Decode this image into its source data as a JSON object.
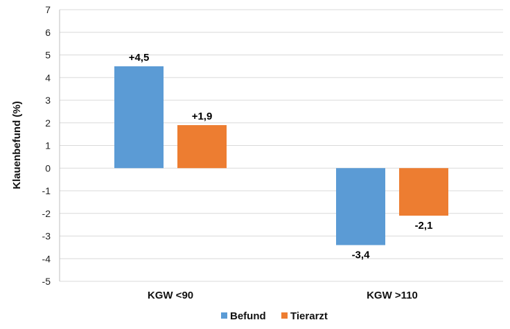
{
  "chart_data": {
    "type": "bar",
    "categories": [
      "KGW <90",
      "KGW >110"
    ],
    "series": [
      {
        "name": "Befund",
        "values": [
          4.5,
          -3.4
        ],
        "labels": [
          "+4,5",
          "-3,4"
        ],
        "color": "#5b9bd5"
      },
      {
        "name": "Tierarzt",
        "values": [
          1.9,
          -2.1
        ],
        "labels": [
          "+1,9",
          "-2,1"
        ],
        "color": "#ed7d31"
      }
    ],
    "ylabel": "Klauenbefund (%)",
    "ylim": [
      -5,
      7
    ],
    "yticks": [
      7,
      6,
      5,
      4,
      3,
      2,
      1,
      0,
      -1,
      -2,
      -3,
      -4,
      -5
    ],
    "grid": true,
    "legend_position": "bottom"
  }
}
